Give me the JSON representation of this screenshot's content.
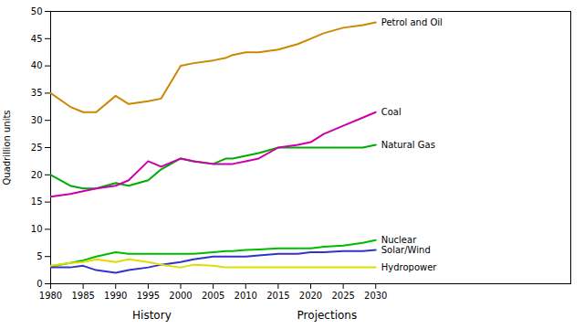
{
  "chart_data": {
    "type": "line",
    "ylabel": "Quadrillion units",
    "annotations": [
      "History",
      "Projections"
    ],
    "x": [
      1980,
      1983,
      1985,
      1987,
      1990,
      1992,
      1995,
      1997,
      2000,
      2002,
      2005,
      2007,
      2008,
      2010,
      2012,
      2015,
      2018,
      2020,
      2022,
      2025,
      2028,
      2030
    ],
    "series": [
      {
        "name": "Petrol and Oil",
        "color": "#cc8800",
        "values": [
          35.0,
          32.5,
          31.5,
          31.5,
          34.5,
          33.0,
          33.5,
          34.0,
          40.0,
          40.5,
          41.0,
          41.5,
          42.0,
          42.5,
          42.5,
          43.0,
          44.0,
          45.0,
          46.0,
          47.0,
          47.5,
          48.0
        ]
      },
      {
        "name": "Natural Gas",
        "color": "#00aa00",
        "values": [
          20.0,
          18.0,
          17.5,
          17.5,
          18.5,
          18.0,
          19.0,
          21.0,
          23.0,
          22.5,
          22.0,
          23.0,
          23.0,
          23.5,
          24.0,
          25.0,
          25.0,
          25.0,
          25.0,
          25.0,
          25.0,
          25.5
        ]
      },
      {
        "name": "Coal",
        "color": "#cc00aa",
        "values": [
          16.0,
          16.5,
          17.0,
          17.5,
          18.0,
          19.0,
          22.5,
          21.5,
          23.0,
          22.5,
          22.0,
          22.0,
          22.0,
          22.5,
          23.0,
          25.0,
          25.5,
          26.0,
          27.5,
          29.0,
          30.5,
          31.5
        ]
      },
      {
        "name": "Nuclear",
        "color": "#00bb00",
        "values": [
          3.2,
          3.8,
          4.3,
          5.0,
          5.8,
          5.5,
          5.5,
          5.5,
          5.5,
          5.5,
          5.8,
          6.0,
          6.0,
          6.2,
          6.3,
          6.5,
          6.5,
          6.5,
          6.8,
          7.0,
          7.5,
          8.0
        ]
      },
      {
        "name": "Solar/Wind",
        "color": "#3333cc",
        "values": [
          3.0,
          3.0,
          3.3,
          2.5,
          2.0,
          2.5,
          3.0,
          3.5,
          4.0,
          4.5,
          5.0,
          5.0,
          5.0,
          5.0,
          5.2,
          5.5,
          5.5,
          5.8,
          5.8,
          6.0,
          6.0,
          6.2
        ]
      },
      {
        "name": "Hydropower",
        "color": "#dddd00",
        "values": [
          3.3,
          3.8,
          4.0,
          4.5,
          4.0,
          4.5,
          4.0,
          3.5,
          3.0,
          3.5,
          3.3,
          3.0,
          3.0,
          3.0,
          3.0,
          3.0,
          3.0,
          3.0,
          3.0,
          3.0,
          3.0,
          3.0
        ]
      }
    ],
    "xlim": [
      1980,
      2060
    ],
    "xticks": [
      1980,
      1985,
      1990,
      1995,
      2000,
      2005,
      2010,
      2015,
      2020,
      2025,
      2030
    ],
    "ylim": [
      0,
      50
    ],
    "yticks": [
      0,
      5,
      10,
      15,
      20,
      25,
      30,
      35,
      40,
      45,
      50
    ],
    "grid": false
  }
}
